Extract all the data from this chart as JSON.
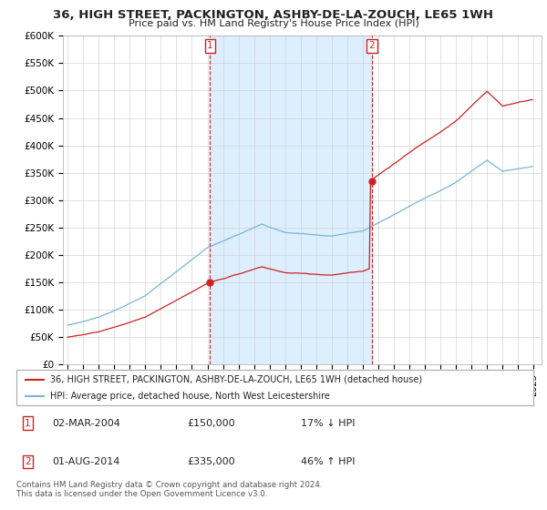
{
  "title": "36, HIGH STREET, PACKINGTON, ASHBY-DE-LA-ZOUCH, LE65 1WH",
  "subtitle": "Price paid vs. HM Land Registry's House Price Index (HPI)",
  "ylim": [
    0,
    600000
  ],
  "yticks": [
    0,
    50000,
    100000,
    150000,
    200000,
    250000,
    300000,
    350000,
    400000,
    450000,
    500000,
    550000,
    600000
  ],
  "ytick_labels": [
    "£0",
    "£50K",
    "£100K",
    "£150K",
    "£200K",
    "£250K",
    "£300K",
    "£350K",
    "£400K",
    "£450K",
    "£500K",
    "£550K",
    "£600K"
  ],
  "hpi_color": "#7ab4d8",
  "price_color": "#cc2222",
  "shade_color": "#ddeeff",
  "m1_year": 2004.17,
  "m1_price": 150000,
  "m2_year": 2014.58,
  "m2_price": 335000,
  "legend_line1": "36, HIGH STREET, PACKINGTON, ASHBY-DE-LA-ZOUCH, LE65 1WH (detached house)",
  "legend_line2": "HPI: Average price, detached house, North West Leicestershire",
  "annotation1": [
    "1",
    "02-MAR-2004",
    "£150,000",
    "17% ↓ HPI"
  ],
  "annotation2": [
    "2",
    "01-AUG-2014",
    "£335,000",
    "46% ↑ HPI"
  ],
  "footer": "Contains HM Land Registry data © Crown copyright and database right 2024.\nThis data is licensed under the Open Government Licence v3.0.",
  "bg_color": "#ffffff",
  "grid_color": "#cccccc"
}
